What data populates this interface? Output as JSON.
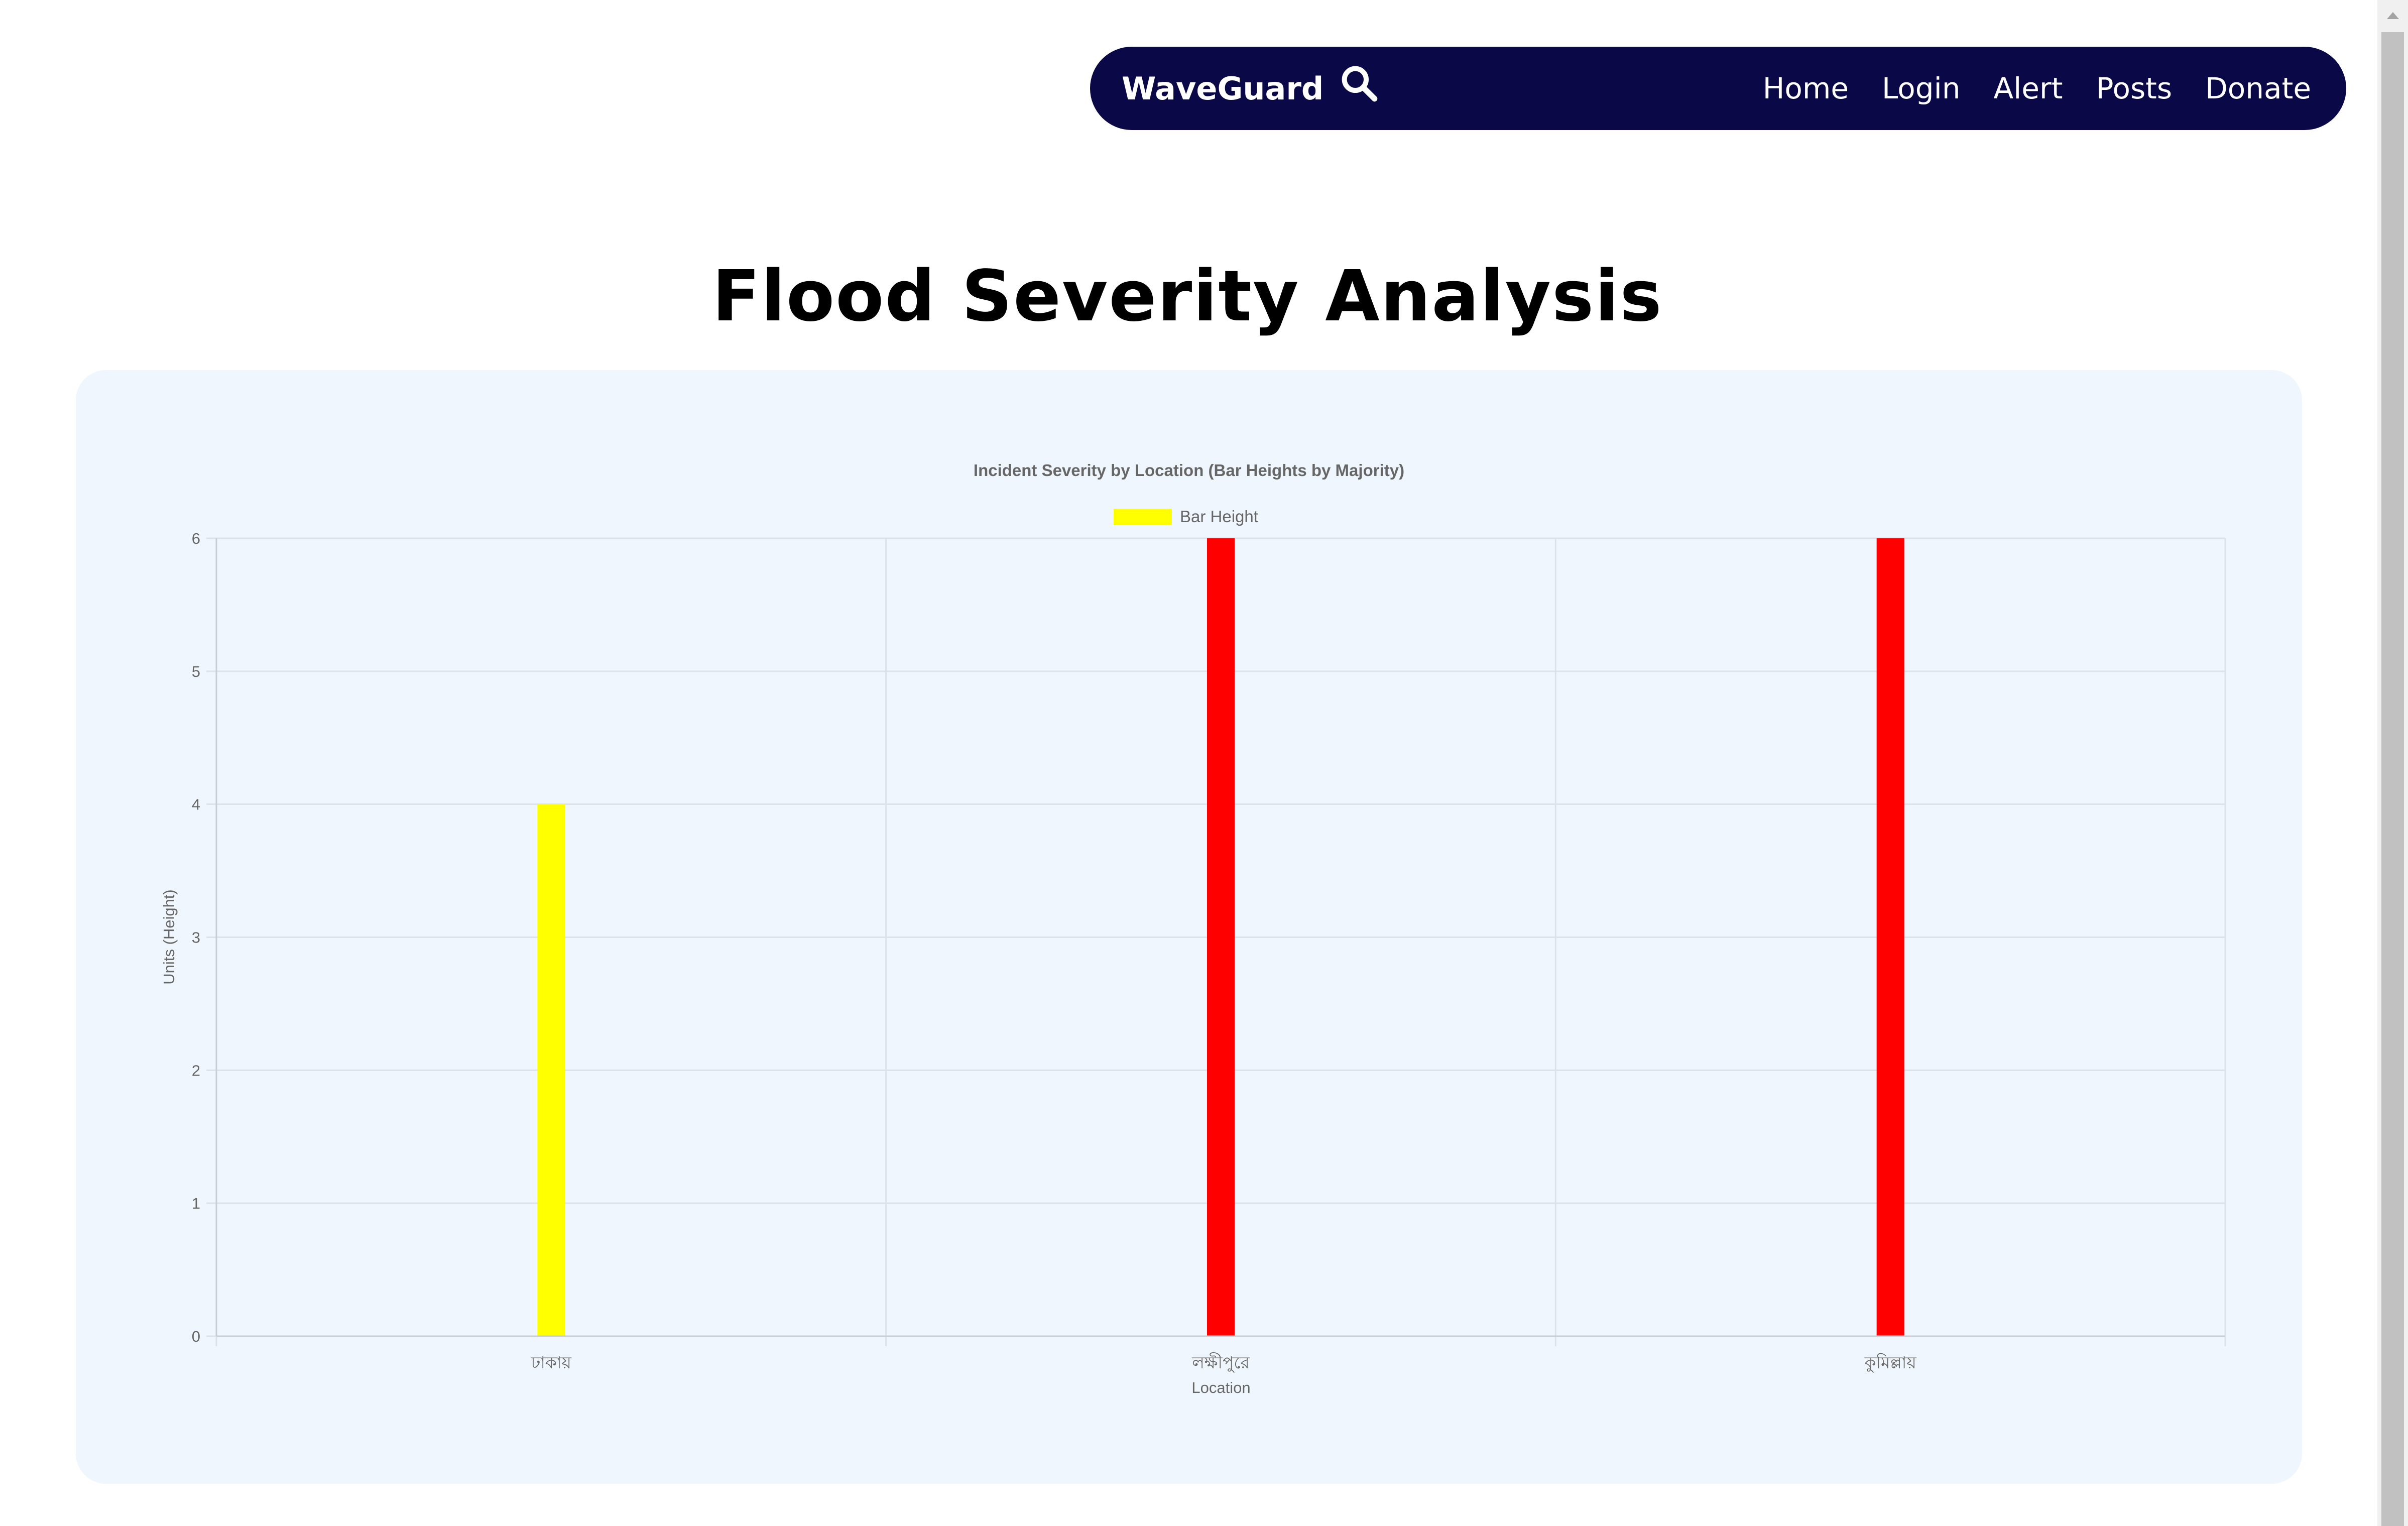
{
  "navbar": {
    "brand": "WaveGuard",
    "brand_icon": "search-icon",
    "links": [
      "Home",
      "Login",
      "Alert",
      "Posts",
      "Donate"
    ]
  },
  "page": {
    "title": "Flood Severity Analysis"
  },
  "colors": {
    "navbar_bg": "#0b0847",
    "card_bg": "#eff6fd",
    "legend_swatch": "#ffff00"
  },
  "chart_data": {
    "type": "bar",
    "title": "Incident Severity by Location (Bar Heights by Majority)",
    "legend": [
      "Bar Height"
    ],
    "legend_position": "top",
    "xlabel": "Location",
    "ylabel": "Units (Height)",
    "categories": [
      "ঢাকায়",
      "লক্ষীপুরে",
      "কুমিল্লায়"
    ],
    "series": [
      {
        "name": "Bar Height",
        "values": [
          4,
          6,
          6
        ],
        "colors": [
          "#ffff00",
          "#ff0000",
          "#ff0000"
        ]
      }
    ],
    "ylim": [
      0,
      6
    ],
    "yticks": [
      0,
      1,
      2,
      3,
      4,
      5,
      6
    ],
    "grid": true
  }
}
